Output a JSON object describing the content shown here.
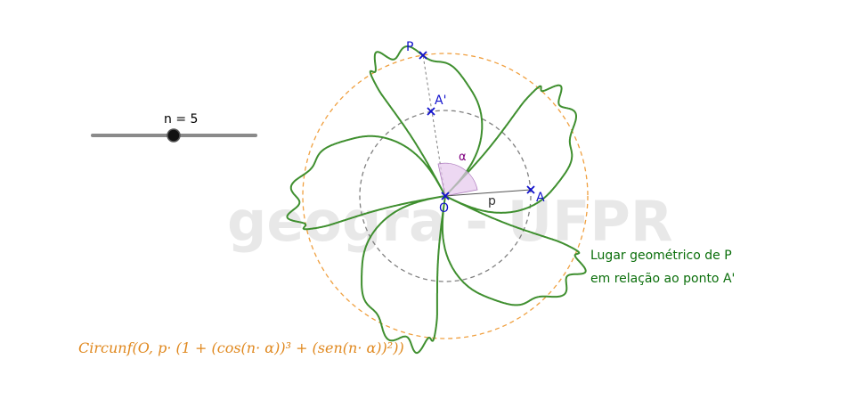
{
  "watermark": "geogra - UFPR",
  "slider": {
    "label": "n = 5",
    "value": 5,
    "min": 0,
    "max": 10
  },
  "points": {
    "P": "P",
    "A_prime": "A'",
    "O": "O",
    "A": "A",
    "p": "p",
    "alpha": "α"
  },
  "locus_caption": {
    "line1": "Lugar geométrico de P",
    "line2": "em relação ao ponto A'"
  },
  "formula": "Circunf(O, p· (1 + (cos(n· α))³ + (sen(n· α))²))",
  "colors": {
    "curve": "#3f8f2f",
    "orange_circle": "#f0a040",
    "gray_circle": "#808080",
    "point_marker": "#1010cc",
    "angle_fill": "#e6c8ec",
    "angle_label": "#800080",
    "caption": "#0a6e0a",
    "formula": "#e0881e"
  }
}
